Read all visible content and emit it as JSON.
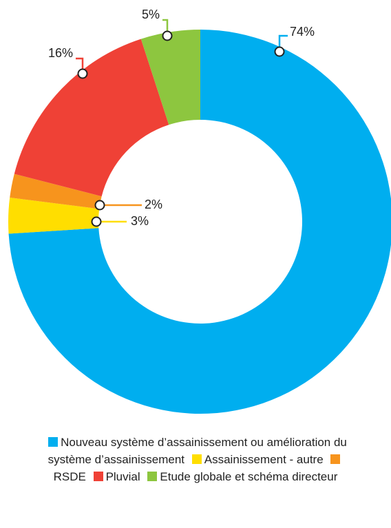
{
  "chart_data": {
    "type": "donut",
    "categories": [
      "Nouveau système d’assainissement ou amélioration du système d’assainissement",
      "Assainissement - autre",
      "RSDE",
      "Pluvial",
      "Etude globale et schéma directeur"
    ],
    "values": [
      74,
      3,
      2,
      16,
      5
    ],
    "value_labels": [
      "74%",
      "3%",
      "2%",
      "16%",
      "5%"
    ],
    "colors": [
      "#00aeef",
      "#ffde00",
      "#f7941d",
      "#ef4136",
      "#8dc63f"
    ]
  }
}
